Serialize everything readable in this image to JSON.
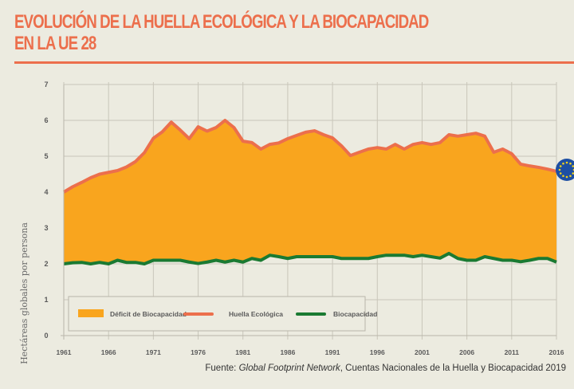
{
  "header": {
    "title_line1": "EVOLUCIÓN DE LA HUELLA ECOLÓGICA Y LA BIOCAPACIDAD",
    "title_line2": "EN LA UE 28"
  },
  "footer": {
    "source_prefix": "Fuente: ",
    "source_italic": "Global Footprint Network",
    "source_rest": ", Cuentas Nacionales de la Huella y Biocapacidad 2019"
  },
  "badge": {
    "icon": "eu-flag-icon",
    "color": "#1d4fa3",
    "star_color": "#f2d21b"
  },
  "colors": {
    "background": "#ecebe0",
    "deficit_fill": "#f9a51e",
    "footprint_line": "#ec6f4c",
    "biocapacity_line": "#1a7a32",
    "grid": "#c9c6ba"
  },
  "chart_data": {
    "type": "area",
    "title": "EVOLUCIÓN DE LA HUELLA ECOLÓGICA Y LA BIOCAPACIDAD EN LA UE 28",
    "xlabel": "",
    "ylabel": "Hectáreas globales por persona",
    "ylim": [
      0,
      7
    ],
    "xlim": [
      1961,
      2016
    ],
    "yticks": [
      "0",
      "1",
      "2",
      "3",
      "4",
      "5",
      "6",
      "7"
    ],
    "xticks": [
      "1961",
      "1966",
      "1971",
      "1976",
      "1981",
      "1986",
      "1991",
      "1996",
      "2001",
      "2006",
      "2011",
      "2016"
    ],
    "grid": true,
    "legend_position": "bottom-left inside",
    "x": [
      1961,
      1962,
      1963,
      1964,
      1965,
      1966,
      1967,
      1968,
      1969,
      1970,
      1971,
      1972,
      1973,
      1974,
      1975,
      1976,
      1977,
      1978,
      1979,
      1980,
      1981,
      1982,
      1983,
      1984,
      1985,
      1986,
      1987,
      1988,
      1989,
      1990,
      1991,
      1992,
      1993,
      1994,
      1995,
      1996,
      1997,
      1998,
      1999,
      2000,
      2001,
      2002,
      2003,
      2004,
      2005,
      2006,
      2007,
      2008,
      2009,
      2010,
      2011,
      2012,
      2013,
      2014,
      2015,
      2016
    ],
    "series": [
      {
        "name": "Huella Ecológica",
        "values": [
          4.0,
          4.15,
          4.27,
          4.4,
          4.5,
          4.55,
          4.6,
          4.7,
          4.85,
          5.1,
          5.5,
          5.68,
          5.95,
          5.73,
          5.49,
          5.82,
          5.7,
          5.8,
          6.0,
          5.8,
          5.42,
          5.38,
          5.2,
          5.33,
          5.37,
          5.49,
          5.58,
          5.67,
          5.71,
          5.6,
          5.51,
          5.29,
          5.02,
          5.11,
          5.2,
          5.24,
          5.2,
          5.33,
          5.2,
          5.33,
          5.38,
          5.33,
          5.38,
          5.6,
          5.56,
          5.6,
          5.64,
          5.56,
          5.11,
          5.2,
          5.07,
          4.78,
          4.73,
          4.69,
          4.64,
          4.58
        ]
      },
      {
        "name": "Biocapacidad",
        "values": [
          2.0,
          2.03,
          2.04,
          2.0,
          2.04,
          2.0,
          2.1,
          2.04,
          2.04,
          2.0,
          2.1,
          2.1,
          2.1,
          2.1,
          2.05,
          2.01,
          2.05,
          2.1,
          2.05,
          2.1,
          2.05,
          2.15,
          2.1,
          2.24,
          2.2,
          2.15,
          2.2,
          2.2,
          2.2,
          2.2,
          2.2,
          2.15,
          2.15,
          2.15,
          2.15,
          2.2,
          2.24,
          2.24,
          2.24,
          2.2,
          2.24,
          2.2,
          2.16,
          2.29,
          2.15,
          2.1,
          2.1,
          2.2,
          2.15,
          2.1,
          2.1,
          2.06,
          2.1,
          2.15,
          2.15,
          2.05
        ]
      }
    ],
    "area": {
      "name": "Déficit de Biocapacidad",
      "between": [
        "Biocapacidad",
        "Huella Ecológica"
      ]
    },
    "legend": [
      {
        "label": "Déficit de Biocapacidad",
        "kind": "area"
      },
      {
        "label": "Huella Ecológica",
        "kind": "line"
      },
      {
        "label": "Biocapacidad",
        "kind": "line"
      }
    ]
  }
}
